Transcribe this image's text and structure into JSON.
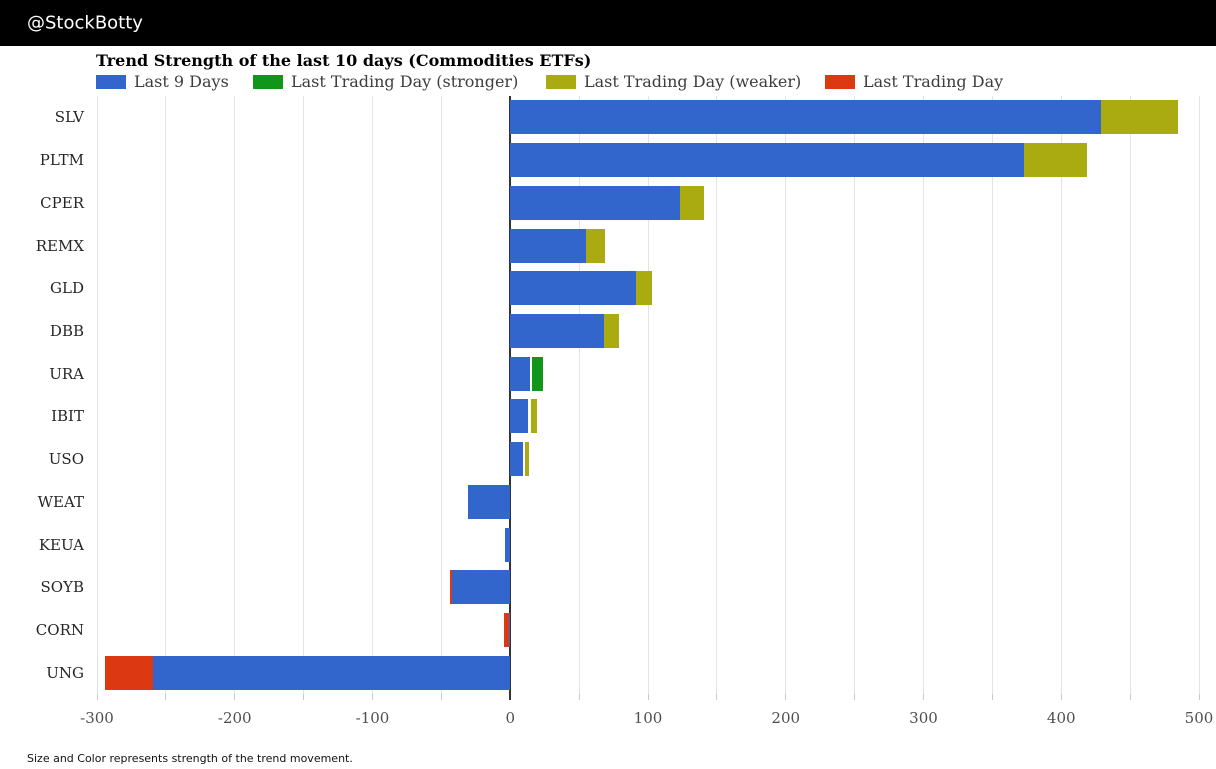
{
  "header": {
    "handle": "@StockBotty"
  },
  "chart_data": {
    "type": "bar",
    "stacked": true,
    "orientation": "horizontal",
    "title": "Trend Strength of the last 10 days (Commodities ETFs)",
    "footnote": "Size and Color represents strength of the trend movement.",
    "palette": {
      "last9": "#3366cc",
      "stronger": "#109618",
      "weaker": "#aaaa11",
      "last_day": "#dc3912"
    },
    "legend": [
      {
        "key": "last9",
        "label": "Last 9 Days"
      },
      {
        "key": "stronger",
        "label": "Last Trading Day (stronger)"
      },
      {
        "key": "weaker",
        "label": "Last Trading Day (weaker)"
      },
      {
        "key": "last_day",
        "label": "Last Trading Day"
      }
    ],
    "x_axis": {
      "min": -300,
      "max": 500,
      "grid_step": 50,
      "label_step": 100,
      "tick_labels": [
        "-300",
        "-200",
        "-100",
        "0",
        "100",
        "200",
        "300",
        "400",
        "500"
      ]
    },
    "categories": [
      "SLV",
      "PLTM",
      "CPER",
      "REMX",
      "GLD",
      "DBB",
      "URA",
      "IBIT",
      "USO",
      "WEAT",
      "KEUA",
      "SOYB",
      "CORN",
      "UNG"
    ],
    "rows": [
      {
        "label": "SLV",
        "segments": [
          {
            "key": "last9",
            "from": 0,
            "to": 429
          },
          {
            "key": "weaker",
            "from": 429,
            "to": 485
          }
        ]
      },
      {
        "label": "PLTM",
        "segments": [
          {
            "key": "last9",
            "from": 0,
            "to": 373
          },
          {
            "key": "weaker",
            "from": 373,
            "to": 419
          }
        ]
      },
      {
        "label": "CPER",
        "segments": [
          {
            "key": "last9",
            "from": 0,
            "to": 123
          },
          {
            "key": "weaker",
            "from": 123,
            "to": 141
          }
        ]
      },
      {
        "label": "REMX",
        "segments": [
          {
            "key": "last9",
            "from": 0,
            "to": 55
          },
          {
            "key": "weaker",
            "from": 55,
            "to": 69
          }
        ]
      },
      {
        "label": "GLD",
        "segments": [
          {
            "key": "last9",
            "from": 0,
            "to": 91
          },
          {
            "key": "weaker",
            "from": 91,
            "to": 103
          }
        ]
      },
      {
        "label": "DBB",
        "segments": [
          {
            "key": "last9",
            "from": 0,
            "to": 68
          },
          {
            "key": "weaker",
            "from": 68,
            "to": 79
          }
        ]
      },
      {
        "label": "URA",
        "segments": [
          {
            "key": "last9",
            "from": 0,
            "to": 14
          },
          {
            "key": "stronger",
            "from": 16,
            "to": 24
          }
        ]
      },
      {
        "label": "IBIT",
        "segments": [
          {
            "key": "last9",
            "from": 0,
            "to": 13
          },
          {
            "key": "weaker",
            "from": 15,
            "to": 19.5
          }
        ]
      },
      {
        "label": "USO",
        "segments": [
          {
            "key": "last9",
            "from": 0,
            "to": 9
          },
          {
            "key": "weaker",
            "from": 11,
            "to": 13.5
          }
        ]
      },
      {
        "label": "WEAT",
        "segments": [
          {
            "key": "last9",
            "from": -31,
            "to": 0
          }
        ]
      },
      {
        "label": "KEUA",
        "segments": [
          {
            "key": "last9",
            "from": -4,
            "to": 0
          }
        ]
      },
      {
        "label": "SOYB",
        "segments": [
          {
            "key": "last_day",
            "from": -44,
            "to": -42.5
          },
          {
            "key": "last9",
            "from": -42.5,
            "to": 0
          }
        ]
      },
      {
        "label": "CORN",
        "segments": [
          {
            "key": "last_day",
            "from": -4.5,
            "to": -1
          },
          {
            "key": "last9",
            "from": -1,
            "to": 0
          }
        ]
      },
      {
        "label": "UNG",
        "segments": [
          {
            "key": "last_day",
            "from": -294,
            "to": -259
          },
          {
            "key": "last9",
            "from": -259,
            "to": 0
          }
        ]
      }
    ]
  }
}
